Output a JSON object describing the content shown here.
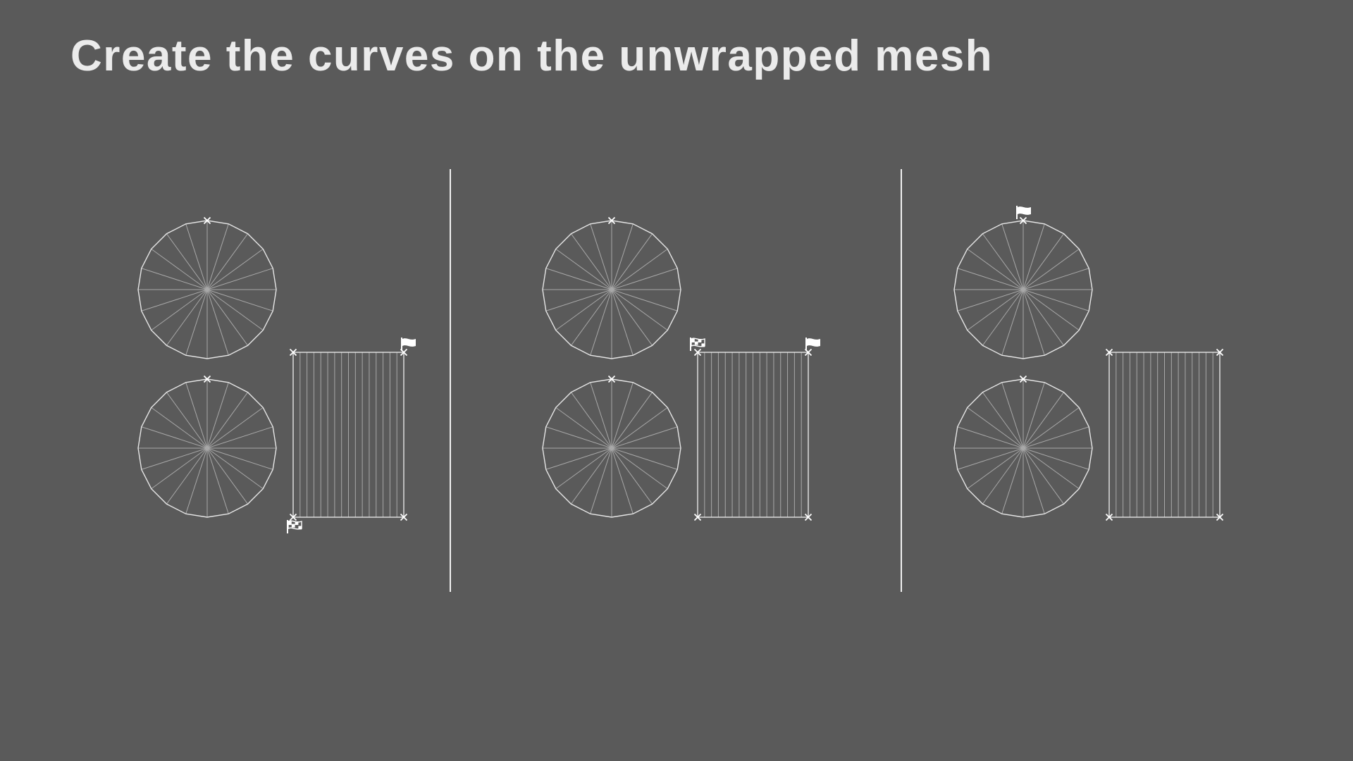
{
  "slide": {
    "title": "Create the curves on the unwrapped mesh"
  },
  "colors": {
    "background": "#5a5a5a",
    "title": "#ebebeb",
    "outline": "#e6e6e6",
    "spokes": "#a8a8a8",
    "marker": "#ffffff",
    "divider": "#f2f2f2"
  },
  "diagram": {
    "panel_count": 3,
    "disc_segments": 20,
    "strip_divisions": 16,
    "panels": [
      {
        "name": "panel-1",
        "flags": [
          {
            "kind": "start-flag-icon",
            "placement": "strip top-right corner"
          },
          {
            "kind": "finish-flag-icon",
            "placement": "strip bottom-left corner"
          }
        ]
      },
      {
        "name": "panel-2",
        "flags": [
          {
            "kind": "finish-flag-icon",
            "placement": "strip top-left corner"
          },
          {
            "kind": "start-flag-icon",
            "placement": "strip top-right corner"
          }
        ]
      },
      {
        "name": "panel-3",
        "flags": [
          {
            "kind": "start-flag-icon",
            "placement": "upper disc top"
          }
        ]
      }
    ]
  }
}
